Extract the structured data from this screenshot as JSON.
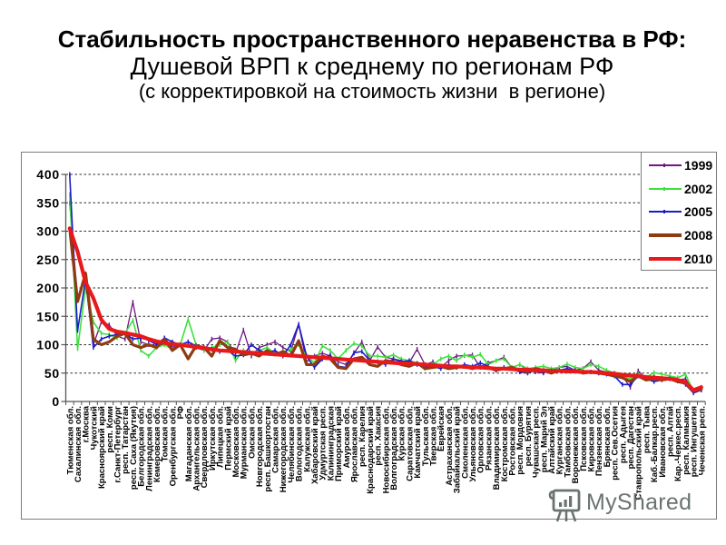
{
  "slide": {
    "title_line1": "Стабильность пространственного неравенства в РФ:",
    "title_line2": "Душевой ВРП к среднему по регионам РФ",
    "title_line3": "(с корректировкой на стоимость жизни  в регионе)"
  },
  "watermark": {
    "text": "MyShared",
    "icon": "presentation-board-icon",
    "color": "#56605f"
  },
  "chart_data": {
    "type": "line",
    "title": "Душевой ВРП к среднему по регионам РФ",
    "subtitle": "(с корректировкой на стоимость жизни в регионе)",
    "xlabel": "",
    "ylabel": "",
    "ylim": [
      0,
      400
    ],
    "yticks": [
      0,
      50,
      100,
      150,
      200,
      250,
      300,
      350,
      400
    ],
    "ytick_labels": [
      "0",
      "50",
      "100",
      "150",
      "200",
      "250",
      "300",
      "350",
      "400"
    ],
    "grid": true,
    "grid_style": "dashed-horizontal",
    "legend_position": "top-right",
    "categories": [
      "Тюменская обл.",
      "Сахалинская обл.",
      "г.Москва",
      "Чукотский",
      "Красноярский край",
      "респ. Коми",
      "г.Санкт-Петербург",
      "респ. Татарстан",
      "респ. Саха (Якутия)",
      "Белгородская обл.",
      "Ленинградская обл.",
      "Кемеровская обл.",
      "Томская обл.",
      "Оренбургская обл.",
      "РФ",
      "Магаданская обл.",
      "Архангельская обл.",
      "Свердловская обл.",
      "Иркутская обл.",
      "Липецкая обл.",
      "Пермский край",
      "Московская обл.",
      "Мурманская обл.",
      "Омская обл.",
      "Новгородская обл.",
      "респ. Башкортостан",
      "Самарская обл.",
      "Нижегородская обл.",
      "Челябинская обл.",
      "Вологодская обл.",
      "Калужская обл.",
      "Хабаровский край",
      "Удмуртская респ.",
      "Калининградская",
      "Приморский край",
      "Амурская обл.",
      "Ярославская обл.",
      "респ. Карелия",
      "Краснодарский край",
      "респ. Хакасия",
      "Новосибирская обл.",
      "Волгоградская обл.",
      "Курская обл.",
      "Саратовская обл.",
      "Камчатский край",
      "Тульская обл.",
      "Тверская обл.",
      "Еврейская",
      "Астраханская обл.",
      "Забайкальский край",
      "Смоленская обл.",
      "Ульяновская обл.",
      "Орловская обл.",
      "Рязанская обл.",
      "Владимирская обл.",
      "Костромская обл.",
      "Ростовская обл.",
      "респ. Мордовия",
      "респ. Бурятия",
      "Чувашская респ.",
      "респ. Марий Эл",
      "Алтайский край",
      "Курганская обл.",
      "Тамбовская обл.",
      "Воронежская обл.",
      "Псковская обл.",
      "Кировская обл.",
      "Пензенская обл.",
      "Брянская обл.",
      "респ. Сев.Осетия",
      "респ. Адыгея",
      "респ. Дагестан",
      "Ставропольский край",
      "респ. Тыва",
      "Каб.-Балкар.респ.",
      "Ивановская обл.",
      "респ. Алтай",
      "Кар.-Черкес.респ.",
      "респ. Калмыкия",
      "респ. Ингушетия",
      "Чеченская респ."
    ],
    "series": [
      {
        "name": "1999",
        "color": "#6e1a80",
        "width": 1.3,
        "marker": "dash",
        "values": [
          350,
          180,
          225,
          100,
          140,
          135,
          115,
          110,
          175,
          105,
          100,
          98,
          112,
          95,
          100,
          105,
          95,
          90,
          110,
          112,
          105,
          85,
          126,
          80,
          95,
          100,
          105,
          95,
          88,
          135,
          70,
          80,
          85,
          80,
          70,
          65,
          85,
          105,
          72,
          96,
          78,
          75,
          72,
          68,
          92,
          65,
          70,
          60,
          72,
          80,
          81,
          82,
          60,
          68,
          72,
          78,
          60,
          65,
          55,
          52,
          50,
          55,
          60,
          62,
          55,
          58,
          70,
          55,
          52,
          50,
          45,
          25,
          54,
          40,
          45,
          40,
          42,
          38,
          40,
          20,
          25
        ]
      },
      {
        "name": "2002",
        "color": "#3de03d",
        "width": 1.6,
        "marker": "dash",
        "values": [
          365,
          93,
          200,
          140,
          120,
          118,
          112,
          120,
          143,
          90,
          80,
          95,
          100,
          92,
          100,
          145,
          100,
          90,
          95,
          100,
          105,
          72,
          90,
          85,
          90,
          95,
          85,
          88,
          92,
          100,
          80,
          68,
          98,
          90,
          75,
          90,
          102,
          98,
          80,
          80,
          78,
          82,
          75,
          72,
          68,
          58,
          65,
          75,
          80,
          72,
          82,
          78,
          83,
          65,
          72,
          75,
          60,
          65,
          58,
          60,
          62,
          58,
          60,
          66,
          60,
          58,
          65,
          62,
          55,
          50,
          45,
          40,
          48,
          42,
          51,
          48,
          45,
          42,
          48,
          18,
          22
        ]
      },
      {
        "name": "2005",
        "color": "#1a1acc",
        "width": 1.6,
        "marker": "dash",
        "values": [
          400,
          125,
          215,
          95,
          110,
          115,
          118,
          120,
          110,
          112,
          108,
          100,
          112,
          105,
          100,
          105,
          98,
          95,
          92,
          88,
          90,
          80,
          82,
          100,
          90,
          85,
          90,
          80,
          100,
          136,
          80,
          60,
          75,
          82,
          62,
          60,
          86,
          88,
          72,
          70,
          65,
          75,
          70,
          72,
          65,
          60,
          62,
          58,
          65,
          60,
          65,
          62,
          68,
          62,
          55,
          60,
          58,
          52,
          50,
          55,
          52,
          54,
          55,
          58,
          55,
          52,
          52,
          50,
          48,
          45,
          30,
          30,
          45,
          40,
          35,
          38,
          40,
          36,
          30,
          15,
          20
        ]
      },
      {
        "name": "2008",
        "color": "#8e3a12",
        "width": 3.2,
        "marker": "none",
        "values": [
          305,
          176,
          226,
          110,
          100,
          105,
          115,
          120,
          100,
          95,
          100,
          95,
          110,
          90,
          100,
          75,
          98,
          95,
          80,
          107,
          95,
          92,
          82,
          85,
          80,
          90,
          82,
          88,
          80,
          107,
          65,
          65,
          80,
          75,
          60,
          58,
          75,
          78,
          65,
          62,
          72,
          70,
          65,
          62,
          68,
          58,
          60,
          62,
          58,
          60,
          62,
          58,
          62,
          60,
          55,
          58,
          60,
          55,
          52,
          58,
          55,
          50,
          55,
          52,
          55,
          50,
          52,
          50,
          48,
          45,
          42,
          35,
          45,
          38,
          40,
          38,
          40,
          35,
          32,
          18,
          22
        ]
      },
      {
        "name": "2010",
        "color": "#e8191a",
        "width": 4.2,
        "marker": "none",
        "values": [
          305,
          264,
          210,
          182,
          144,
          128,
          123,
          121,
          118,
          115,
          110,
          106,
          103,
          101,
          100,
          98,
          96,
          94,
          92,
          90,
          89,
          88,
          87,
          86,
          85,
          84,
          83,
          82,
          81,
          80,
          79,
          78,
          77,
          76,
          75,
          74,
          73,
          72,
          71,
          70,
          69,
          68,
          67,
          67,
          66,
          65,
          64,
          63,
          62,
          62,
          61,
          60,
          60,
          59,
          58,
          58,
          57,
          56,
          56,
          55,
          55,
          54,
          54,
          53,
          53,
          52,
          52,
          51,
          50,
          49,
          47,
          46,
          45,
          43,
          42,
          41,
          40,
          38,
          34,
          20,
          25
        ]
      }
    ]
  }
}
